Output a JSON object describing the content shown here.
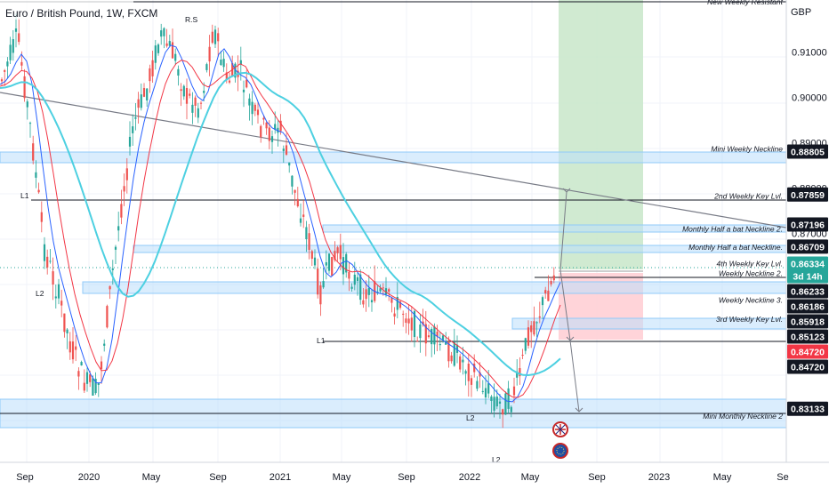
{
  "chart_data": {
    "type": "candlestick",
    "title": "Euro / British Pound, 1W, FXCM",
    "currency": "GBP",
    "x_ticks": [
      "Sep",
      "2020",
      "May",
      "Sep",
      "2021",
      "May",
      "Sep",
      "2022",
      "May",
      "Sep",
      "2023",
      "May",
      "Se"
    ],
    "y_ticks": [
      "0.91000",
      "0.90000",
      "0.89000",
      "0.88000",
      "0.87000"
    ],
    "ylim": [
      0.8195,
      0.9215
    ],
    "price_tags": [
      {
        "value": 0.88805,
        "label": "0.88805",
        "style": "dark"
      },
      {
        "value": 0.87859,
        "label": "0.87859",
        "style": "dark"
      },
      {
        "value": 0.87196,
        "label": "0.87196",
        "style": "dark"
      },
      {
        "value": 0.86709,
        "label": "0.86709",
        "style": "dark"
      },
      {
        "value": 0.86334,
        "label": "0.86334",
        "style": "teal",
        "sub": "3d 14h"
      },
      {
        "value": 0.86233,
        "label": "0.86233",
        "style": "dark"
      },
      {
        "value": 0.86186,
        "label": "0.86186",
        "style": "dark"
      },
      {
        "value": 0.85918,
        "label": "0.85918",
        "style": "dark"
      },
      {
        "value": 0.85123,
        "label": "0.85123",
        "style": "dark"
      },
      {
        "value": 0.8472,
        "label": "0.84720",
        "style": "red"
      },
      {
        "value": 0.8472,
        "label": "0.84720",
        "style": "dark"
      },
      {
        "value": 0.83133,
        "label": "0.83133",
        "style": "dark"
      }
    ],
    "level_labels": [
      {
        "text": "New Weekly Resistant",
        "value": 0.9205
      },
      {
        "text": "Mini Weekly Neckline",
        "value": 0.8881
      },
      {
        "text": "2nd Weekly Key Lvl.",
        "value": 0.8777
      },
      {
        "text": "Monthly Half a bat Neckline 2.",
        "value": 0.8704
      },
      {
        "text": "Monthly Half a bat Neckline.",
        "value": 0.8664
      },
      {
        "text": "4th Weekly Key Lvl.",
        "value": 0.8628
      },
      {
        "text": "Weekly Neckline 2.",
        "value": 0.8606
      },
      {
        "text": "Weekly Neckline 3.",
        "value": 0.8547
      },
      {
        "text": "3rd Weekly Key Lvl.",
        "value": 0.8505
      },
      {
        "text": "Mini Monthly Neckline 2",
        "value": 0.8291
      }
    ],
    "annotations": [
      "R.S",
      "L1",
      "L2",
      "L1",
      "L2",
      "L2"
    ],
    "colors": {
      "up": "#26a69a",
      "down": "#ef5350",
      "zone": "#bbdefb",
      "profit": "#c8e6c9",
      "loss": "#ffcdd2",
      "ma_blue": "#2962ff",
      "ma_red": "#f23645",
      "ma_teal": "#4dd0e1"
    }
  }
}
